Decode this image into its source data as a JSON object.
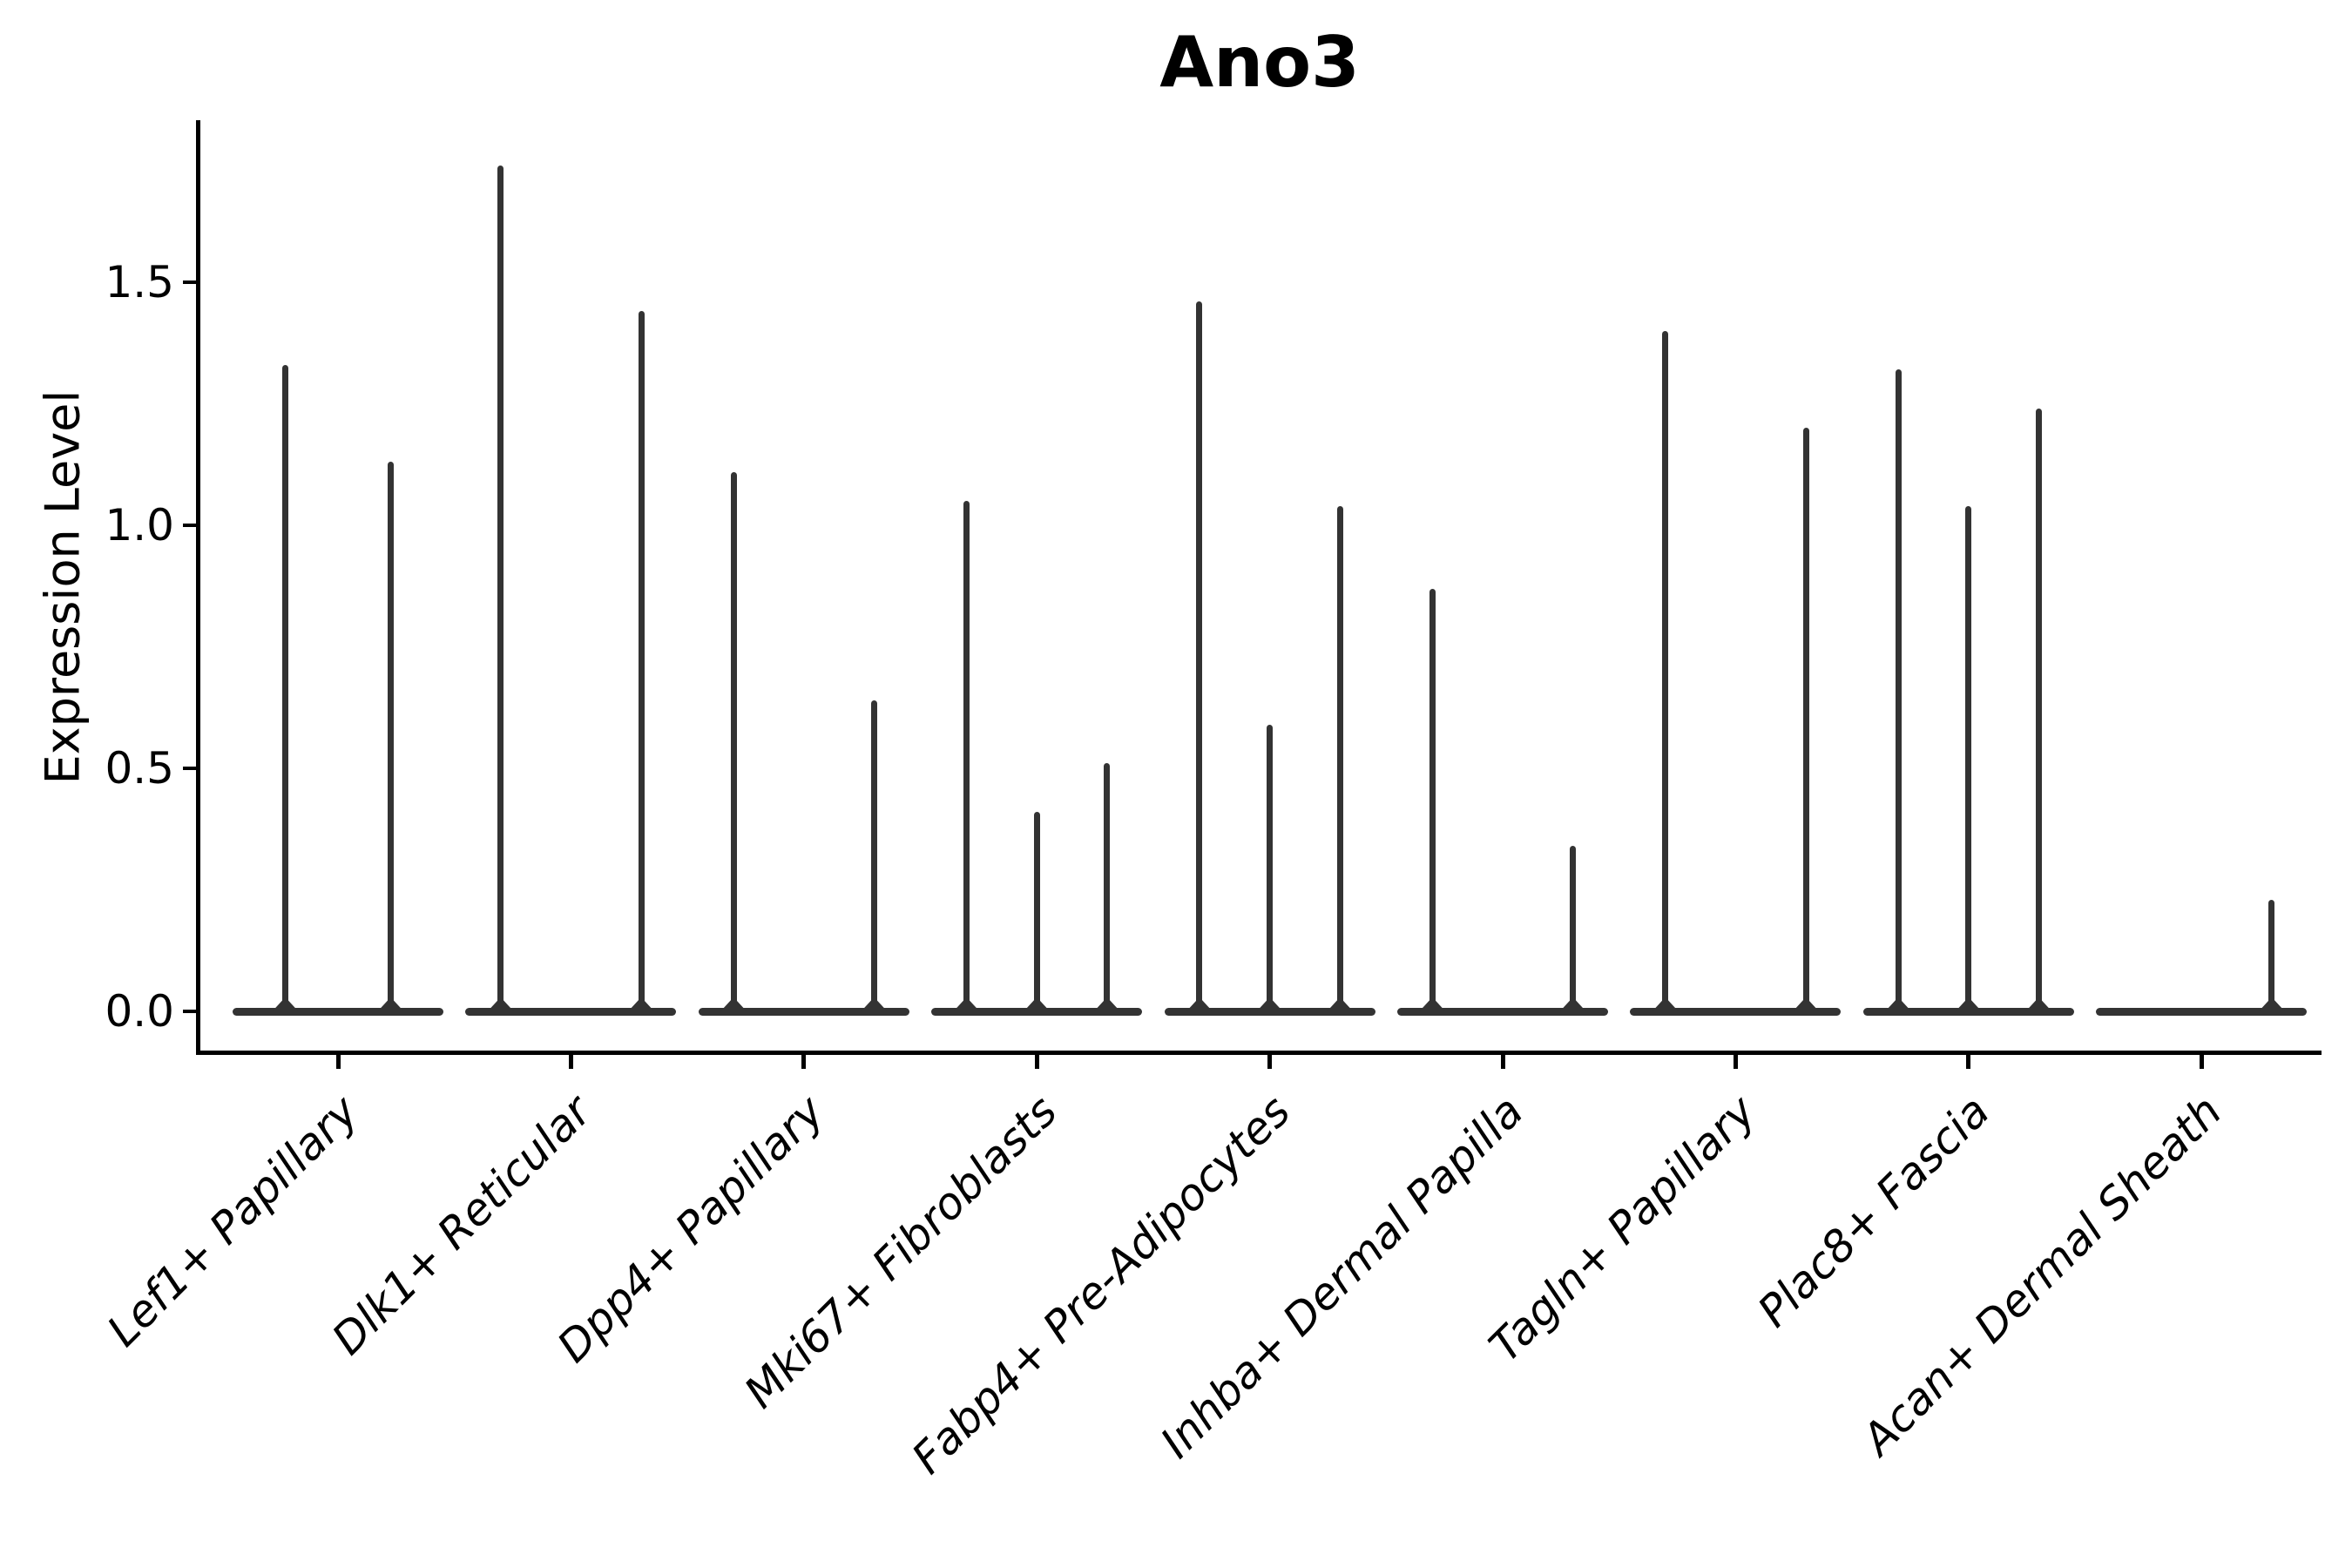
{
  "figure": {
    "title": "Ano3",
    "ylabel": "Expression Level"
  },
  "chart_data": {
    "type": "violin",
    "title": "Ano3",
    "xlabel": "",
    "ylabel": "Expression Level",
    "ylim": [
      -0.08,
      1.84
    ],
    "grid": false,
    "legend": null,
    "yticks": {
      "values": [
        0,
        0.5,
        1,
        1.5
      ],
      "labels": [
        "0.0",
        "0.5",
        "1.0",
        "1.5"
      ]
    },
    "categories": [
      "Lef1+ Papillary",
      "Dlk1+ Reticular",
      "Dpp4+ Papillary",
      "Mki67+ Fibroblasts",
      "Fabp4+ Pre-Adipocytes",
      "Inhba+ Dermal Papilla",
      "Tagln+ Papillary",
      "Plac8+ Fascia",
      "Acan+ Dermal Sheath"
    ],
    "violins_per_category": [
      [
        1.33,
        1.13
      ],
      [
        1.74,
        0,
        1.44
      ],
      [
        1.11,
        0,
        0.64
      ],
      [
        1.05,
        0.41,
        0.51
      ],
      [
        1.46,
        0.59,
        1.04
      ],
      [
        0.87,
        0,
        0.34
      ],
      [
        1.4,
        0,
        1.2
      ],
      [
        1.32,
        1.04,
        1.24
      ],
      [
        0,
        0,
        0.23
      ]
    ],
    "violin_color": "#333333",
    "axis_color": "#000000",
    "text_color": "#000000",
    "background": "#ffffff"
  }
}
